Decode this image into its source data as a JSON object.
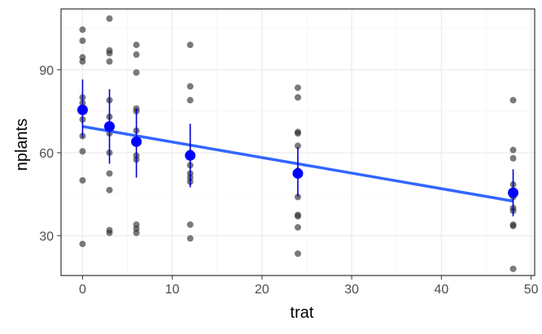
{
  "chart_data": {
    "type": "scatter",
    "title": "",
    "xlabel": "trat",
    "ylabel": "nplants",
    "xlim": [
      -2.4,
      50.4
    ],
    "ylim": [
      15.6,
      112.0
    ],
    "x_ticks": [
      0,
      10,
      20,
      30,
      40,
      50
    ],
    "y_ticks": [
      30,
      60,
      90
    ],
    "grid": true,
    "legend": "none",
    "colors": {
      "raw_points": "#333333",
      "means": "#0000ff",
      "error_bars": "#0000cd",
      "trend": "#3366ff",
      "grid_major": "#ebebeb",
      "grid_minor": "#f5f5f5",
      "panel_border": "#333333"
    },
    "raw_points": [
      {
        "x": 0,
        "y": 104.5
      },
      {
        "x": 0,
        "y": 100.5
      },
      {
        "x": 0,
        "y": 94.5
      },
      {
        "x": 0,
        "y": 93
      },
      {
        "x": 0,
        "y": 80
      },
      {
        "x": 0,
        "y": 78
      },
      {
        "x": 0,
        "y": 72
      },
      {
        "x": 0,
        "y": 66
      },
      {
        "x": 0,
        "y": 60.5
      },
      {
        "x": 0,
        "y": 50
      },
      {
        "x": 0,
        "y": 27
      },
      {
        "x": 3,
        "y": 108.5
      },
      {
        "x": 3,
        "y": 97
      },
      {
        "x": 3,
        "y": 96
      },
      {
        "x": 3,
        "y": 93
      },
      {
        "x": 3,
        "y": 79
      },
      {
        "x": 3,
        "y": 73
      },
      {
        "x": 3,
        "y": 67
      },
      {
        "x": 3,
        "y": 60
      },
      {
        "x": 3,
        "y": 52.5
      },
      {
        "x": 3,
        "y": 46.5
      },
      {
        "x": 3,
        "y": 32
      },
      {
        "x": 3,
        "y": 31
      },
      {
        "x": 6,
        "y": 99
      },
      {
        "x": 6,
        "y": 95.5
      },
      {
        "x": 6,
        "y": 89
      },
      {
        "x": 6,
        "y": 76
      },
      {
        "x": 6,
        "y": 75
      },
      {
        "x": 6,
        "y": 68
      },
      {
        "x": 6,
        "y": 59
      },
      {
        "x": 6,
        "y": 57.5
      },
      {
        "x": 6,
        "y": 34
      },
      {
        "x": 6,
        "y": 32.5
      },
      {
        "x": 6,
        "y": 31
      },
      {
        "x": 12,
        "y": 99
      },
      {
        "x": 12,
        "y": 84
      },
      {
        "x": 12,
        "y": 79
      },
      {
        "x": 12,
        "y": 60
      },
      {
        "x": 12,
        "y": 55.5
      },
      {
        "x": 12,
        "y": 52.5
      },
      {
        "x": 12,
        "y": 51
      },
      {
        "x": 12,
        "y": 49.5
      },
      {
        "x": 12,
        "y": 34
      },
      {
        "x": 12,
        "y": 29
      },
      {
        "x": 24,
        "y": 83.5
      },
      {
        "x": 24,
        "y": 80
      },
      {
        "x": 24,
        "y": 67.5
      },
      {
        "x": 24,
        "y": 67
      },
      {
        "x": 24,
        "y": 62.5
      },
      {
        "x": 24,
        "y": 53.5
      },
      {
        "x": 24,
        "y": 52
      },
      {
        "x": 24,
        "y": 44
      },
      {
        "x": 24,
        "y": 37.5
      },
      {
        "x": 24,
        "y": 37
      },
      {
        "x": 24,
        "y": 33
      },
      {
        "x": 24,
        "y": 23.5
      },
      {
        "x": 48,
        "y": 79
      },
      {
        "x": 48,
        "y": 61
      },
      {
        "x": 48,
        "y": 58
      },
      {
        "x": 48,
        "y": 48.5
      },
      {
        "x": 48,
        "y": 46
      },
      {
        "x": 48,
        "y": 44
      },
      {
        "x": 48,
        "y": 40
      },
      {
        "x": 48,
        "y": 39
      },
      {
        "x": 48,
        "y": 34
      },
      {
        "x": 48,
        "y": 33.5
      },
      {
        "x": 48,
        "y": 18
      }
    ],
    "means": [
      {
        "x": 0,
        "y": 75.5,
        "low": 65.5,
        "high": 86.5
      },
      {
        "x": 3,
        "y": 69.5,
        "low": 56,
        "high": 83
      },
      {
        "x": 6,
        "y": 64,
        "low": 51,
        "high": 76
      },
      {
        "x": 12,
        "y": 59,
        "low": 47.5,
        "high": 70.5
      },
      {
        "x": 24,
        "y": 52.5,
        "low": 44,
        "high": 62
      },
      {
        "x": 48,
        "y": 45.5,
        "low": 37,
        "high": 54
      }
    ],
    "trend_line": {
      "x": [
        0,
        48
      ],
      "y": [
        69.5,
        42.5
      ]
    }
  }
}
